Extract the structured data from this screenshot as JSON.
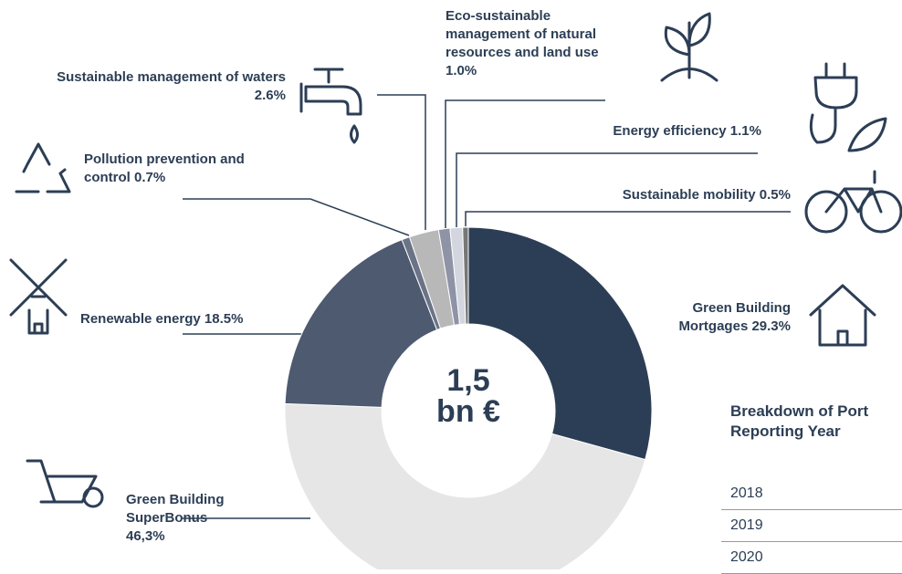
{
  "chart_data": {
    "type": "pie",
    "categories": [
      "Green Building Mortgages",
      "Green Building SuperBonus",
      "Renewable energy",
      "Pollution prevention and control",
      "Sustainable management of waters",
      "Eco-sustainable management of natural resources and land use",
      "Energy efficiency",
      "Sustainable mobility"
    ],
    "values": [
      29.3,
      46.3,
      18.5,
      0.7,
      2.6,
      1.0,
      1.1,
      0.5
    ],
    "value_labels": [
      "29.3%",
      "46,3%",
      "18.5%",
      "0.7%",
      "2.6%",
      "1.0%",
      "1.1%",
      "0.5%"
    ],
    "colors": [
      "#2c3e55",
      "#e6e6e6",
      "#4d5a70",
      "#6b7387",
      "#b8b8b8",
      "#8e93a6",
      "#d3d6de",
      "#777777"
    ],
    "center_value": "1,5",
    "center_unit": "bn €"
  },
  "table": {
    "title": "Breakdown of Port",
    "subtitle": "Reporting Year",
    "rows": [
      "2018",
      "2019",
      "2020"
    ]
  }
}
